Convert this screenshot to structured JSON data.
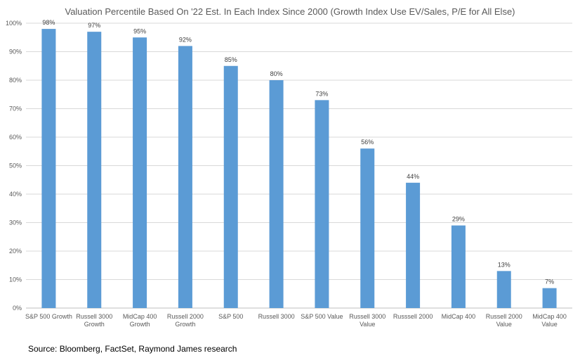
{
  "chart_data": {
    "type": "bar",
    "title": "Valuation Percentile Based On '22 Est. In Each Index Since 2000 (Growth Index Use EV/Sales, P/E for All Else)",
    "categories": [
      [
        "S&P 500 Growth"
      ],
      [
        "Russell 3000",
        "Growth"
      ],
      [
        "MidCap 400",
        "Growth"
      ],
      [
        "Russell 2000",
        "Growth"
      ],
      [
        "S&P 500"
      ],
      [
        "Russell 3000"
      ],
      [
        "S&P 500 Value"
      ],
      [
        "Russell 3000",
        "Value"
      ],
      [
        "Russsell 2000"
      ],
      [
        "MidCap 400"
      ],
      [
        "Russell 2000",
        "Value"
      ],
      [
        "MidCap 400",
        "Value"
      ]
    ],
    "values": [
      98,
      97,
      95,
      92,
      85,
      80,
      73,
      56,
      44,
      29,
      13,
      7
    ],
    "data_labels": [
      "98%",
      "97%",
      "95%",
      "92%",
      "85%",
      "80%",
      "73%",
      "56%",
      "44%",
      "29%",
      "13%",
      "7%"
    ],
    "ylim": [
      0,
      100
    ],
    "yticks": [
      0,
      10,
      20,
      30,
      40,
      50,
      60,
      70,
      80,
      90,
      100
    ],
    "ytick_labels": [
      "0%",
      "10%",
      "20%",
      "30%",
      "40%",
      "50%",
      "60%",
      "70%",
      "80%",
      "90%",
      "100%"
    ],
    "xlabel": "",
    "ylabel": "",
    "grid": true,
    "legend": "none",
    "colors": {
      "bar": "#5B9BD5",
      "grid": "#D9D9D9",
      "axis": "#BFBFBF"
    }
  },
  "source": "Source:  Bloomberg, FactSet, Raymond James research"
}
